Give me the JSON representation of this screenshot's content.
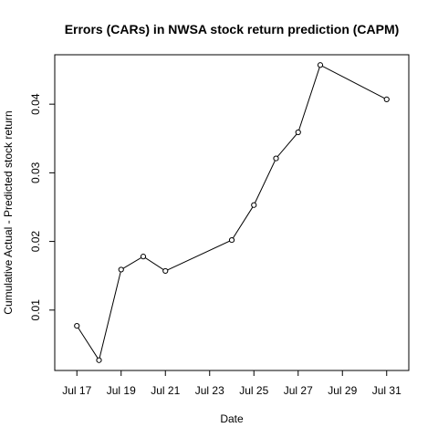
{
  "chart_data": {
    "type": "line",
    "title": "Errors (CARs) in NWSA stock return prediction (CAPM)",
    "xlabel": "Date",
    "ylabel": "Cumulative Actual - Predicted stock return",
    "x_type": "date",
    "x": [
      "2015-07-17",
      "2015-07-18",
      "2015-07-19",
      "2015-07-20",
      "2015-07-21",
      "2015-07-24",
      "2015-07-25",
      "2015-07-26",
      "2015-07-27",
      "2015-07-28",
      "2015-07-31"
    ],
    "series": [
      {
        "values": [
          0.0077,
          0.0027,
          0.0159,
          0.0178,
          0.0157,
          0.0202,
          0.0253,
          0.0321,
          0.0359,
          0.0457,
          0.0407
        ]
      }
    ],
    "x_ticks": [
      "Jul 17",
      "Jul 19",
      "Jul 21",
      "Jul 23",
      "Jul 25",
      "Jul 27",
      "Jul 29",
      "Jul 31"
    ],
    "x_tick_values": [
      "2015-07-17",
      "2015-07-19",
      "2015-07-21",
      "2015-07-23",
      "2015-07-25",
      "2015-07-27",
      "2015-07-29",
      "2015-07-31"
    ],
    "y_ticks": [
      "0.01",
      "0.02",
      "0.03",
      "0.04"
    ],
    "y_tick_values": [
      0.01,
      0.02,
      0.03,
      0.04
    ],
    "xlim": [
      "2015-07-16",
      "2015-08-01"
    ],
    "ylim": [
      0.0012,
      0.0472
    ],
    "grid": false,
    "line_color": "#000000",
    "marker": "open-circle"
  }
}
